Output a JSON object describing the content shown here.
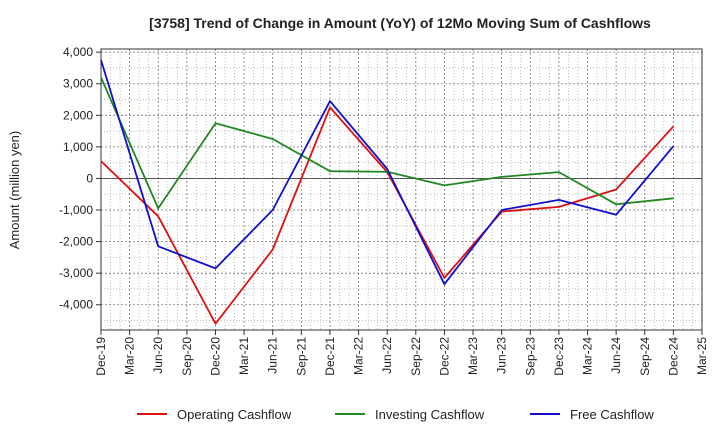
{
  "chart_data": {
    "type": "line",
    "title": "[3758]  Trend of Change in Amount (YoY) of 12Mo Moving Sum of Cashflows",
    "xlabel": "",
    "ylabel": "Amount (million yen)",
    "ylim": [
      -4800,
      4100
    ],
    "yticks": [
      4000,
      3000,
      2000,
      1000,
      0,
      -1000,
      -2000,
      -3000,
      -4000
    ],
    "ytick_labels": [
      "4,000",
      "3,000",
      "2,000",
      "1,000",
      "0",
      "-1,000",
      "-2,000",
      "-3,000",
      "-4,000"
    ],
    "categories": [
      "Dec-19",
      "Mar-20",
      "Jun-20",
      "Sep-20",
      "Dec-20",
      "Mar-21",
      "Jun-21",
      "Sep-21",
      "Dec-21",
      "Mar-22",
      "Jun-22",
      "Sep-22",
      "Dec-22",
      "Mar-23",
      "Jun-23",
      "Sep-23",
      "Dec-23",
      "Mar-24",
      "Jun-24",
      "Sep-24",
      "Dec-24",
      "Mar-25"
    ],
    "grid": true,
    "legend_position": "bottom",
    "series": [
      {
        "name": "Operating Cashflow",
        "color": "#dd1111",
        "values": [
          550,
          null,
          -1200,
          null,
          -4600,
          null,
          -2250,
          null,
          2250,
          null,
          200,
          null,
          -3150,
          null,
          -1050,
          null,
          -900,
          null,
          -350,
          null,
          1650,
          null
        ]
      },
      {
        "name": "Investing Cashflow",
        "color": "#228822",
        "values": [
          3200,
          null,
          -950,
          null,
          1750,
          null,
          1250,
          null,
          230,
          null,
          210,
          null,
          -220,
          null,
          50,
          null,
          200,
          null,
          -820,
          null,
          -630,
          null
        ]
      },
      {
        "name": "Free Cashflow",
        "color": "#1111cc",
        "values": [
          3750,
          null,
          -2150,
          null,
          -2850,
          null,
          -1000,
          null,
          2450,
          null,
          300,
          null,
          -3350,
          null,
          -1000,
          null,
          -680,
          null,
          -1150,
          null,
          1020,
          null
        ]
      }
    ]
  }
}
